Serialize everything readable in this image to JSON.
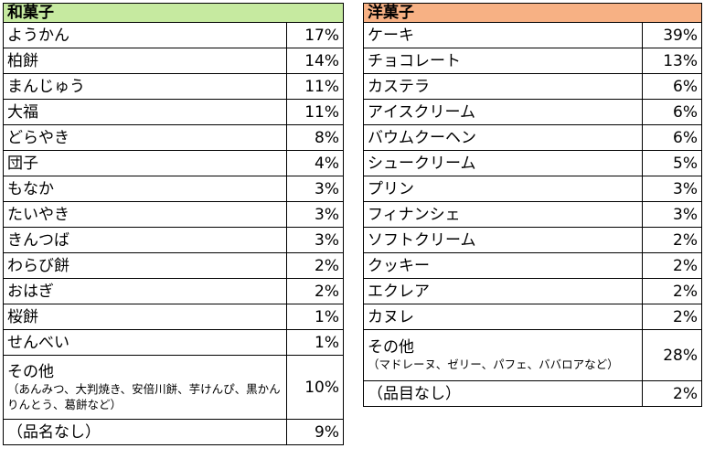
{
  "wagashi": {
    "title": "和菓子",
    "rows": [
      {
        "name": "ようかん",
        "pct": "17%"
      },
      {
        "name": "柏餅",
        "pct": "14%"
      },
      {
        "name": "まんじゅう",
        "pct": "11%"
      },
      {
        "name": "大福",
        "pct": "11%"
      },
      {
        "name": "どらやき",
        "pct": "8%"
      },
      {
        "name": "団子",
        "pct": "4%"
      },
      {
        "name": "もなか",
        "pct": "3%"
      },
      {
        "name": "たいやき",
        "pct": "3%"
      },
      {
        "name": "きんつば",
        "pct": "3%"
      },
      {
        "name": "わらび餅",
        "pct": "2%"
      },
      {
        "name": "おはぎ",
        "pct": "2%"
      },
      {
        "name": "桜餅",
        "pct": "1%"
      },
      {
        "name": "せんべい",
        "pct": "1%"
      }
    ],
    "other": {
      "name": "その他",
      "note": "（あんみつ、大判焼き、安倍川餅、芋けんぴ、黒かんりんとう、葛餅など）",
      "pct": "10%"
    },
    "unnamed": {
      "name": "（品名なし）",
      "pct": "9%"
    }
  },
  "yogashi": {
    "title": "洋菓子",
    "rows": [
      {
        "name": "ケーキ",
        "pct": "39%"
      },
      {
        "name": "チョコレート",
        "pct": "13%"
      },
      {
        "name": "カステラ",
        "pct": "6%"
      },
      {
        "name": "アイスクリーム",
        "pct": "6%"
      },
      {
        "name": "バウムクーヘン",
        "pct": "6%"
      },
      {
        "name": "シュークリーム",
        "pct": "5%"
      },
      {
        "name": "プリン",
        "pct": "3%"
      },
      {
        "name": "フィナンシェ",
        "pct": "3%"
      },
      {
        "name": "ソフトクリーム",
        "pct": "2%"
      },
      {
        "name": "クッキー",
        "pct": "2%"
      },
      {
        "name": "エクレア",
        "pct": "2%"
      },
      {
        "name": "カヌレ",
        "pct": "2%"
      }
    ],
    "other": {
      "name": "その他",
      "note": "（マドレーヌ、ゼリー、パフェ、ババロアなど）",
      "pct": "28%"
    },
    "unnamed": {
      "name": "（品目なし）",
      "pct": "2%"
    }
  }
}
